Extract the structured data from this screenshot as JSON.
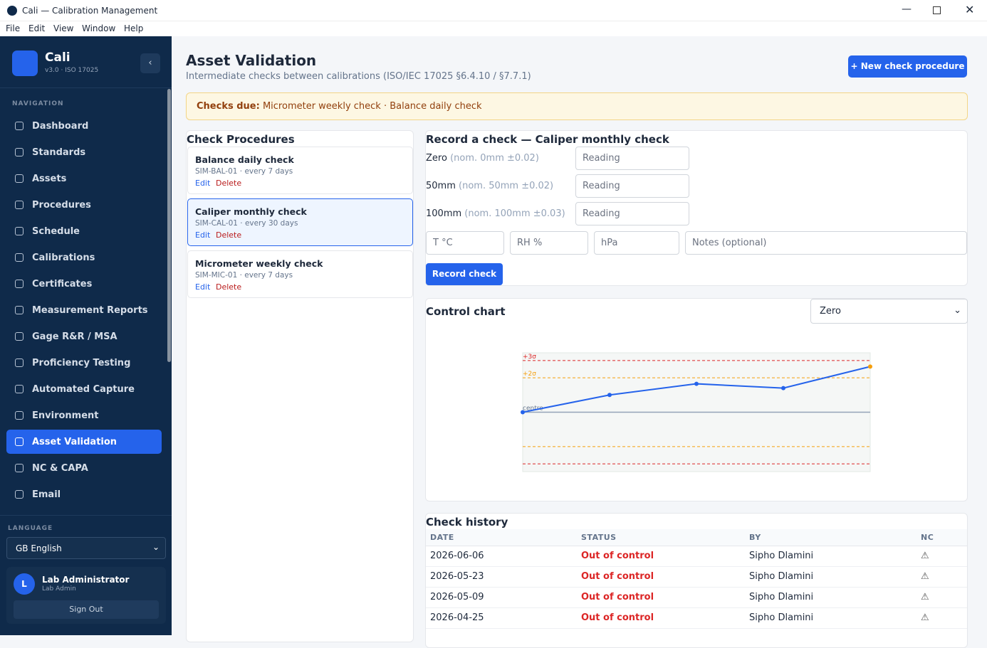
{
  "window": {
    "title": "Cali — Calibration Management",
    "menu": [
      "File",
      "Edit",
      "View",
      "Window",
      "Help"
    ]
  },
  "sidebar": {
    "brand": "Cali",
    "version": "v3.0 · ISO 17025",
    "nav_heading": "NAVIGATION",
    "nav": [
      "Dashboard",
      "Standards",
      "Assets",
      "Procedures",
      "Schedule",
      "Calibrations",
      "Certificates",
      "Measurement Reports",
      "Gage R&R / MSA",
      "Proficiency Testing",
      "Automated Capture",
      "Environment",
      "Asset Validation",
      "NC & CAPA",
      "Email"
    ],
    "active": 12,
    "language_heading": "LANGUAGE",
    "language": "GB English",
    "user": {
      "initial": "L",
      "name": "Lab Administrator",
      "role": "Lab Admin"
    },
    "sign_out": "Sign Out"
  },
  "header": {
    "title": "Asset Validation",
    "subtitle": "Intermediate checks between calibrations (ISO/IEC 17025 §6.4.10 / §7.7.1)",
    "new_button": "+ New check procedure"
  },
  "alert": {
    "label": "Checks due:",
    "text": "Micrometer weekly check · Balance daily check"
  },
  "procedures": {
    "heading": "Check Procedures",
    "selected": 1,
    "items": [
      {
        "name": "Balance daily check",
        "meta": "SIM-BAL-01 · every 7 days",
        "edit": "Edit",
        "delete": "Delete"
      },
      {
        "name": "Caliper monthly check",
        "meta": "SIM-CAL-01 · every 30 days",
        "edit": "Edit",
        "delete": "Delete"
      },
      {
        "name": "Micrometer weekly check",
        "meta": "SIM-MIC-01 · every 7 days",
        "edit": "Edit",
        "delete": "Delete"
      }
    ]
  },
  "record": {
    "heading": "Record a check — Caliper monthly check",
    "fields": [
      {
        "label": "Zero",
        "nominal": "(nom. 0mm ±0.02)",
        "placeholder": "Reading"
      },
      {
        "label": "50mm",
        "nominal": "(nom. 50mm ±0.02)",
        "placeholder": "Reading"
      },
      {
        "label": "100mm",
        "nominal": "(nom. 100mm ±0.03)",
        "placeholder": "Reading"
      }
    ],
    "env": [
      "T °C",
      "RH %",
      "hPa",
      "Notes (optional)"
    ],
    "button": "Record check"
  },
  "control_chart": {
    "heading": "Control chart",
    "select": "Zero",
    "chart": {
      "type": "line",
      "values": [
        0,
        1,
        1.65,
        1.4,
        2.65
      ],
      "ylim": [
        -3.45,
        3.45
      ],
      "color": "#2563eb",
      "warn_color": "#f59e0b",
      "warn_at": 2,
      "limits": [
        {
          "value": 3,
          "label": "+3σ",
          "color": "#dc2626"
        },
        {
          "value": 2,
          "label": "+2σ",
          "color": "#f59e0b"
        },
        {
          "value": 0,
          "label": "centre",
          "color": "#94a3b8"
        },
        {
          "value": -2,
          "color": "#f59e0b"
        },
        {
          "value": -3,
          "color": "#dc2626"
        }
      ]
    }
  },
  "history": {
    "heading": "Check history",
    "columns": [
      "DATE",
      "STATUS",
      "BY",
      "NC"
    ],
    "rows": [
      [
        "2026-06-06",
        "Out of control",
        "Sipho Dlamini",
        "⚠"
      ],
      [
        "2026-05-23",
        "Out of control",
        "Sipho Dlamini",
        "⚠"
      ],
      [
        "2026-05-09",
        "Out of control",
        "Sipho Dlamini",
        "⚠"
      ],
      [
        "2026-04-25",
        "Out of control",
        "Sipho Dlamini",
        "⚠"
      ]
    ]
  }
}
